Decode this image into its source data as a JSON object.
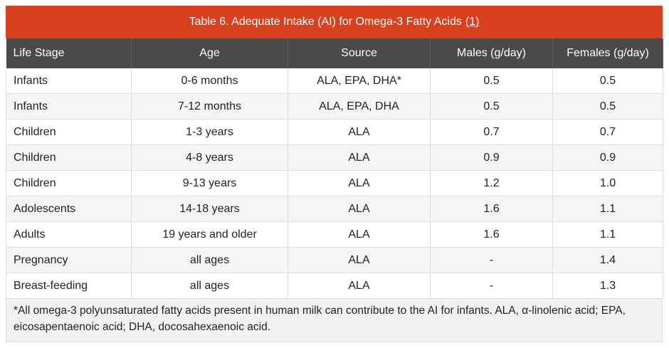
{
  "table": {
    "caption": "Table 6. Adequate Intake (AI) for Omega-3 Fatty Acids",
    "caption_ref": "(1)",
    "headers": [
      "Life Stage",
      "Age",
      "Source",
      "Males (g/day)",
      "Females (g/day)"
    ],
    "rows": [
      [
        "Infants",
        "0-6 months",
        "ALA, EPA, DHA*",
        "0.5",
        "0.5"
      ],
      [
        "Infants",
        "7-12 months",
        "ALA, EPA, DHA",
        "0.5",
        "0.5"
      ],
      [
        "Children",
        "1-3 years",
        "ALA",
        "0.7",
        "0.7"
      ],
      [
        "Children",
        "4-8 years",
        "ALA",
        "0.9",
        "0.9"
      ],
      [
        "Children",
        "9-13 years",
        "ALA",
        "1.2",
        "1.0"
      ],
      [
        "Adolescents",
        "14-18 years",
        "ALA",
        "1.6",
        "1.1"
      ],
      [
        "Adults",
        "19 years and older",
        "ALA",
        "1.6",
        "1.1"
      ],
      [
        "Pregnancy",
        "all ages",
        "ALA",
        "-",
        "1.4"
      ],
      [
        "Breast-feeding",
        "all ages",
        "ALA",
        "-",
        "1.3"
      ]
    ],
    "footnote": "*All omega-3 polyunsaturated fatty acids present in human milk can contribute to the AI for infants. ALA, α-linolenic acid; EPA, eicosapentaenoic acid; DHA, docosahexaenoic acid.",
    "colors": {
      "caption_bg": "#d9411e",
      "header_bg": "#4a4a4a"
    }
  }
}
